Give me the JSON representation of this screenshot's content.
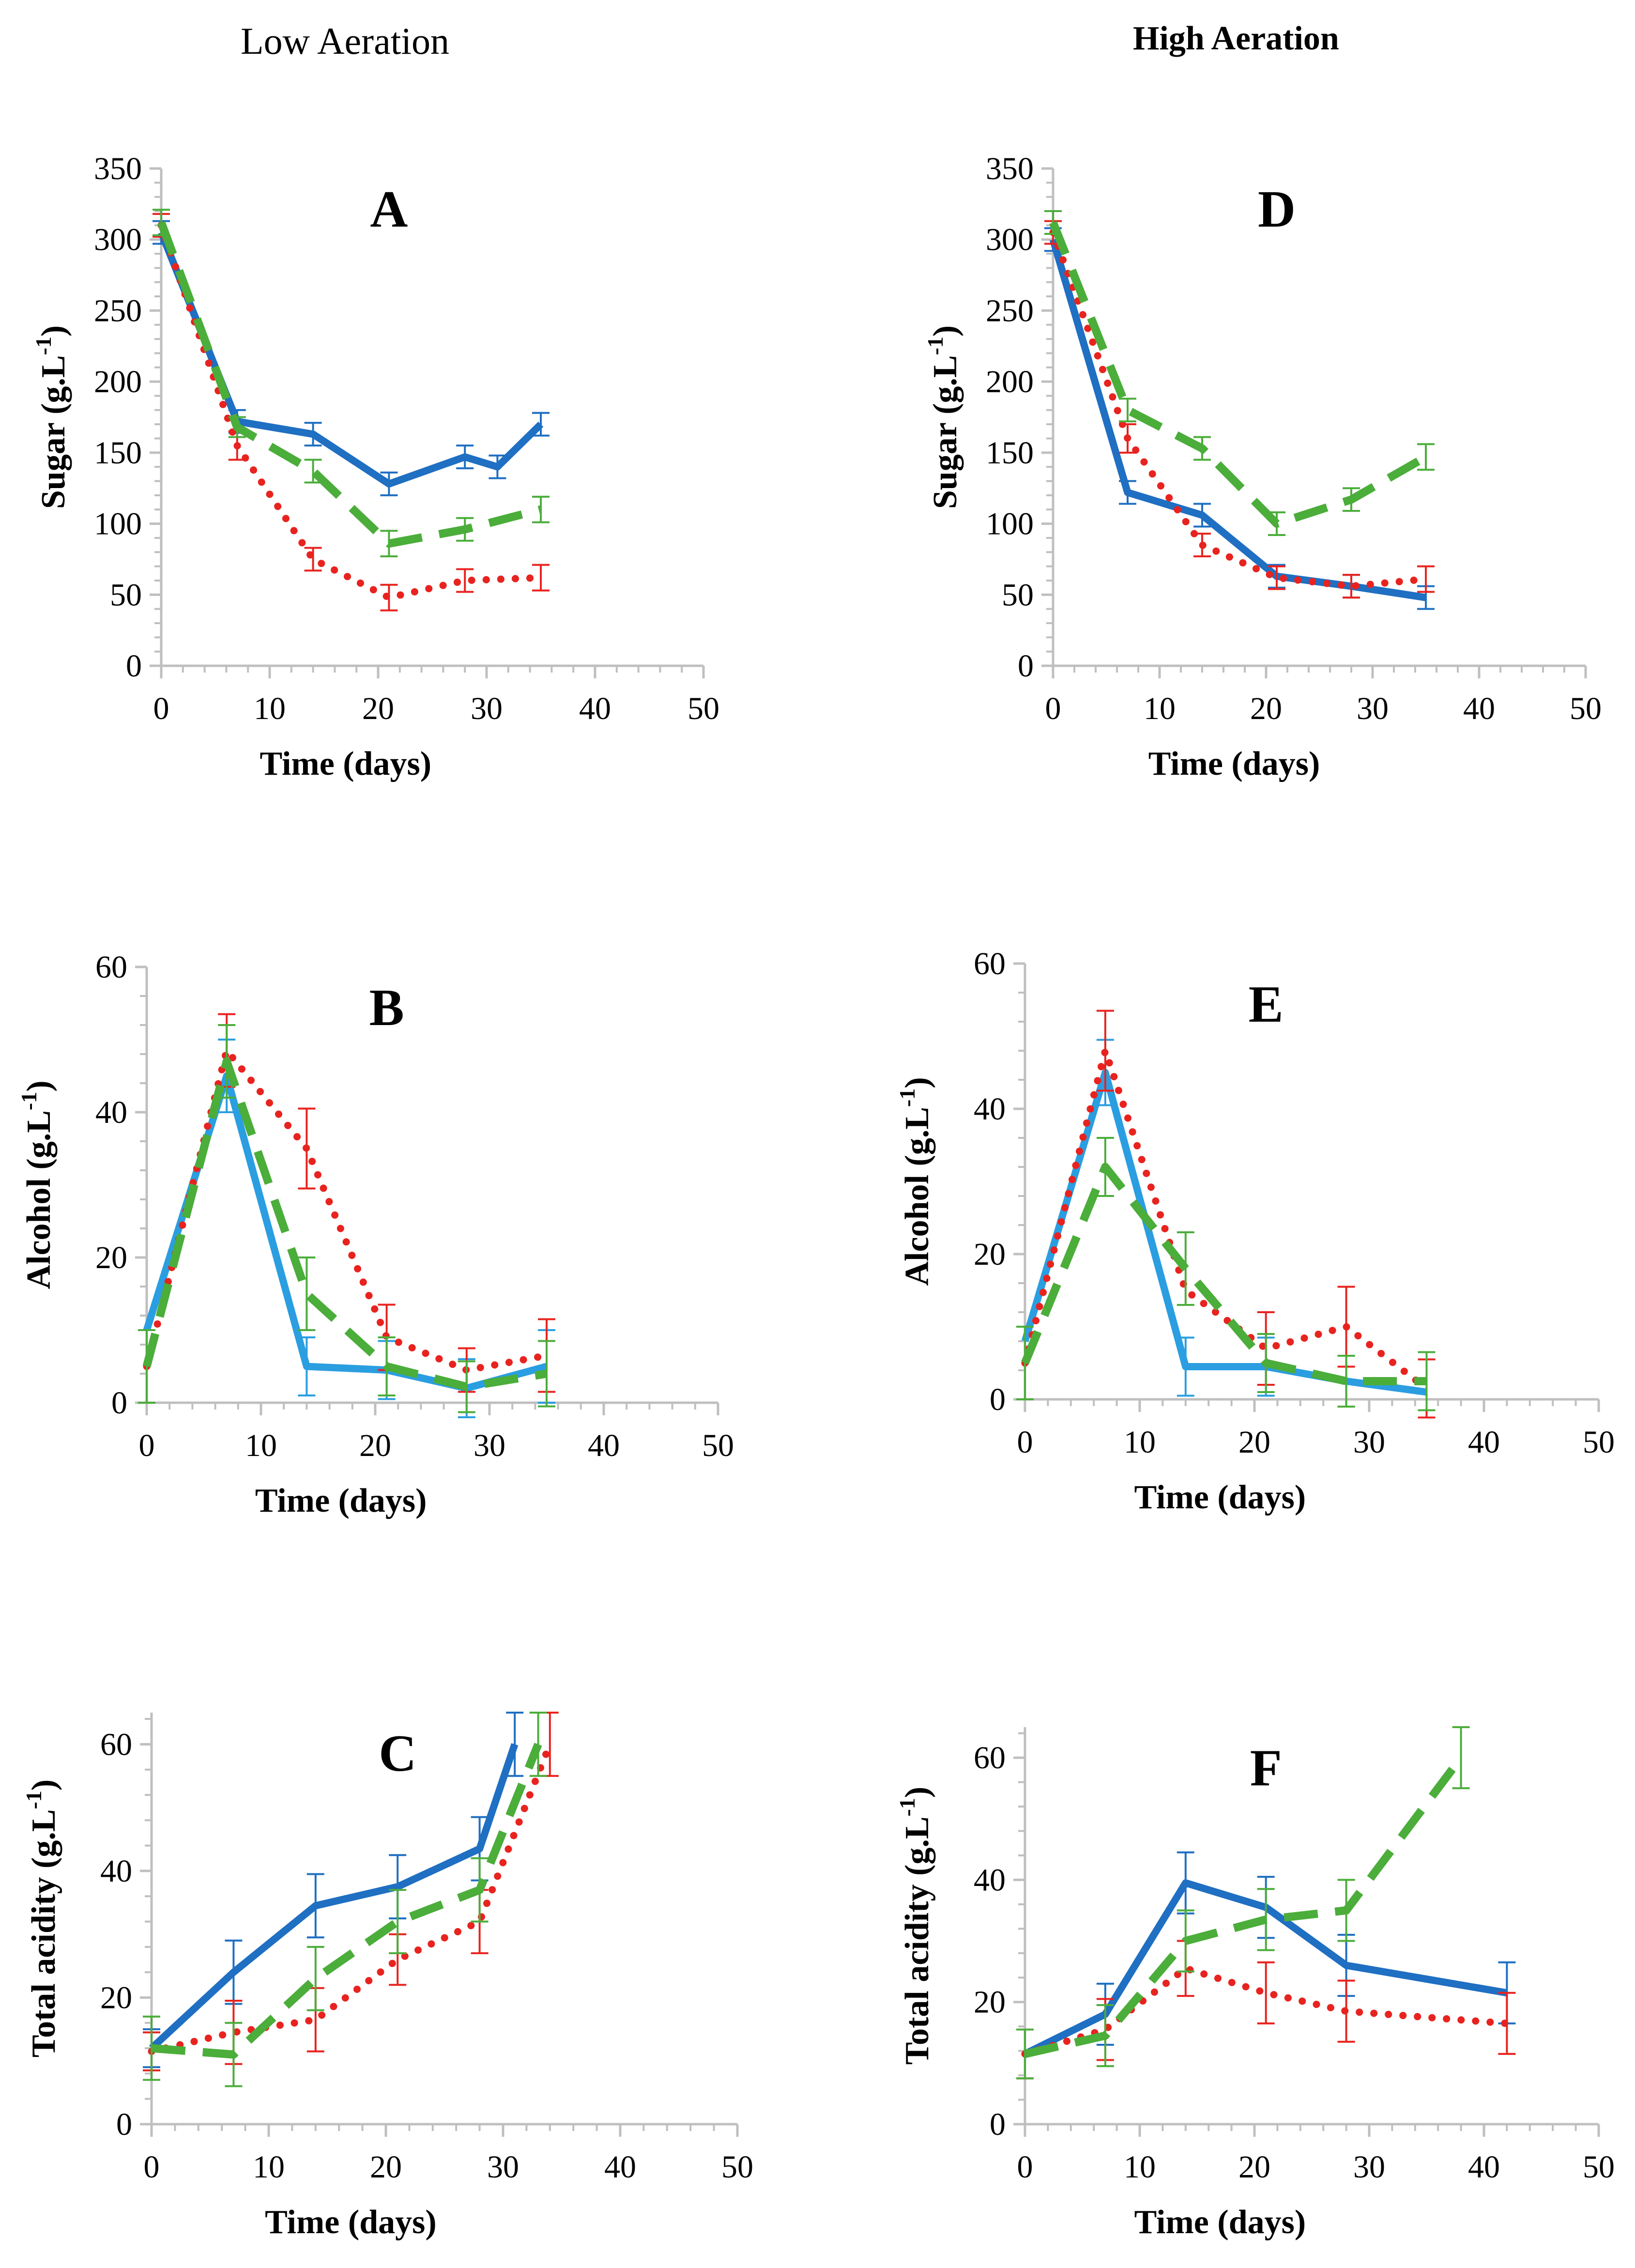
{
  "column_titles": {
    "left": "Low Aeration",
    "right": "High Aeration"
  },
  "series_colors": [
    "#1f6fc2",
    "#e8231f",
    "#4bad3a"
  ],
  "chart_data": [
    {
      "id": "A",
      "type": "line",
      "title": "A",
      "xlabel": "Time (days)",
      "ylabel_main": "Sugar  (g.L",
      "ylabel_sup": "-1",
      "ylabel_end": ")",
      "xlim": [
        0,
        50
      ],
      "ylim": [
        0,
        350
      ],
      "xticks": [
        0,
        10,
        20,
        30,
        40,
        50
      ],
      "yticks": [
        0,
        50,
        100,
        150,
        200,
        250,
        300,
        350
      ],
      "series": [
        {
          "name": "blue-solid",
          "color": "#1f6fc2",
          "style": "solid",
          "x": [
            0,
            7,
            14,
            21,
            28,
            31,
            35
          ],
          "y": [
            305,
            172,
            163,
            128,
            147,
            140,
            170
          ],
          "err": [
            8,
            8,
            8,
            8,
            8,
            8,
            8
          ]
        },
        {
          "name": "red-dotted",
          "color": "#e8231f",
          "style": "dotted",
          "x": [
            0,
            7,
            14,
            21,
            28,
            35
          ],
          "y": [
            310,
            155,
            75,
            48,
            60,
            62
          ],
          "err": [
            8,
            10,
            8,
            9,
            8,
            9
          ]
        },
        {
          "name": "green-dashed",
          "color": "#4bad3a",
          "style": "dashed",
          "x": [
            0,
            7,
            14,
            21,
            28,
            35
          ],
          "y": [
            312,
            168,
            137,
            86,
            96,
            110
          ],
          "err": [
            9,
            7,
            8,
            9,
            8,
            9
          ]
        }
      ]
    },
    {
      "id": "B",
      "type": "line",
      "title": "B",
      "xlabel": "Time (days)",
      "ylabel_main": "Alcohol (g.L",
      "ylabel_sup": "-1",
      "ylabel_end": ")",
      "xlim": [
        0,
        50
      ],
      "ylim": [
        0,
        60
      ],
      "xticks": [
        0,
        10,
        20,
        30,
        40,
        50
      ],
      "yticks": [
        0,
        20,
        40,
        60
      ],
      "series": [
        {
          "name": "lightblue-solid",
          "color": "#2a9ee0",
          "style": "solid",
          "x": [
            0,
            7,
            14,
            21,
            28,
            35
          ],
          "y": [
            10,
            45,
            5,
            4.5,
            2,
            5
          ],
          "err": [
            0,
            5,
            4,
            4,
            4,
            5
          ]
        },
        {
          "name": "red-dotted",
          "color": "#e8231f",
          "style": "dotted",
          "x": [
            0,
            7,
            14,
            21,
            28,
            35
          ],
          "y": [
            5,
            48.5,
            35,
            9,
            4.5,
            6.5
          ],
          "err": [
            0,
            5,
            5.5,
            4.5,
            3,
            5
          ]
        },
        {
          "name": "green-dashed",
          "color": "#4bad3a",
          "style": "dashed",
          "x": [
            0,
            7,
            14,
            21,
            28,
            35
          ],
          "y": [
            5,
            47,
            15,
            5,
            2.2,
            4
          ],
          "err": [
            5,
            5,
            5,
            4,
            3.5,
            4.5
          ]
        }
      ]
    },
    {
      "id": "C",
      "type": "line",
      "title": "C",
      "xlabel": "Time (days)",
      "ylabel_main": "Total acidity (g.L",
      "ylabel_sup": "-1",
      "ylabel_end": ")",
      "xlim": [
        0,
        50
      ],
      "ylim": [
        0,
        65
      ],
      "xticks": [
        0,
        10,
        20,
        30,
        40,
        50
      ],
      "yticks": [
        0,
        20,
        40,
        60
      ],
      "series": [
        {
          "name": "blue-solid",
          "color": "#1f6fc2",
          "style": "solid",
          "x": [
            0,
            7,
            14,
            21,
            28,
            31
          ],
          "y": [
            12,
            24,
            34.5,
            37.5,
            43.5,
            60
          ],
          "err": [
            3,
            5,
            5,
            5,
            5,
            5
          ]
        },
        {
          "name": "red-dotted",
          "color": "#e8231f",
          "style": "dotted",
          "x": [
            0,
            7,
            14,
            21,
            28,
            34
          ],
          "y": [
            11.5,
            14.5,
            16.5,
            26,
            32,
            60
          ],
          "err": [
            3,
            5,
            5,
            4,
            5,
            5
          ]
        },
        {
          "name": "green-dashed",
          "color": "#4bad3a",
          "style": "dashed",
          "x": [
            0,
            7,
            14,
            21,
            28,
            33
          ],
          "y": [
            12,
            11,
            23,
            32,
            37,
            60
          ],
          "err": [
            5,
            5,
            5,
            5,
            5,
            5
          ]
        }
      ]
    },
    {
      "id": "D",
      "type": "line",
      "title": "D",
      "xlabel": "Time (days)",
      "ylabel_main": "Sugar  (g.L",
      "ylabel_sup": "-1",
      "ylabel_end": ")",
      "xlim": [
        0,
        50
      ],
      "ylim": [
        0,
        350
      ],
      "xticks": [
        0,
        10,
        20,
        30,
        40,
        50
      ],
      "yticks": [
        0,
        50,
        100,
        150,
        200,
        250,
        300,
        350
      ],
      "series": [
        {
          "name": "blue-solid",
          "color": "#1f6fc2",
          "style": "solid",
          "x": [
            0,
            7,
            14,
            21,
            28,
            35
          ],
          "y": [
            300,
            122,
            106,
            63,
            56,
            48
          ],
          "err": [
            8,
            8,
            8,
            8,
            8,
            8
          ]
        },
        {
          "name": "red-dotted",
          "color": "#e8231f",
          "style": "dotted",
          "x": [
            0,
            7,
            14,
            21,
            28,
            35
          ],
          "y": [
            305,
            160,
            85,
            62,
            56,
            61
          ],
          "err": [
            8,
            10,
            8,
            8,
            8,
            9
          ]
        },
        {
          "name": "green-dashed",
          "color": "#4bad3a",
          "style": "dashed",
          "x": [
            0,
            7,
            14,
            21,
            28,
            35
          ],
          "y": [
            312,
            180,
            153,
            100,
            117,
            147
          ],
          "err": [
            8,
            8,
            8,
            8,
            8,
            9
          ]
        }
      ]
    },
    {
      "id": "E",
      "type": "line",
      "title": "E",
      "xlabel": "Time (days)",
      "ylabel_main": "Alcohol (g.L",
      "ylabel_sup": "-1",
      "ylabel_end": ")",
      "xlim": [
        0,
        50
      ],
      "ylim": [
        0,
        60
      ],
      "xticks": [
        0,
        10,
        20,
        30,
        40,
        50
      ],
      "yticks": [
        0,
        20,
        40,
        60
      ],
      "series": [
        {
          "name": "lightblue-solid",
          "color": "#2a9ee0",
          "style": "solid",
          "x": [
            0,
            7,
            14,
            21,
            28,
            35
          ],
          "y": [
            8,
            45,
            4.5,
            4.5,
            2.5,
            1
          ],
          "err": [
            0,
            4.5,
            4,
            4,
            3.5,
            0
          ]
        },
        {
          "name": "red-dotted",
          "color": "#e8231f",
          "style": "dotted",
          "x": [
            0,
            7,
            14,
            21,
            28,
            35
          ],
          "y": [
            5,
            48,
            15,
            7,
            10,
            1.5
          ],
          "err": [
            0,
            5.5,
            0,
            5,
            5.5,
            4
          ]
        },
        {
          "name": "green-dashed",
          "color": "#4bad3a",
          "style": "dashed",
          "x": [
            0,
            7,
            14,
            21,
            28,
            35
          ],
          "y": [
            5,
            32,
            18,
            5,
            2.5,
            2.5
          ],
          "err": [
            5,
            4,
            5,
            4,
            3.5,
            4
          ]
        }
      ]
    },
    {
      "id": "F",
      "type": "line",
      "title": "F",
      "xlabel": "Time (days)",
      "ylabel_main": "Total acidity (g.L",
      "ylabel_sup": "-1",
      "ylabel_end": ")",
      "xlim": [
        0,
        50
      ],
      "ylim": [
        0,
        65
      ],
      "xticks": [
        0,
        10,
        20,
        30,
        40,
        50
      ],
      "yticks": [
        0,
        20,
        40,
        60
      ],
      "series": [
        {
          "name": "blue-solid",
          "color": "#1f6fc2",
          "style": "solid",
          "x": [
            0,
            7,
            14,
            21,
            28,
            42
          ],
          "y": [
            11.5,
            18,
            39.5,
            35.5,
            26,
            21.5
          ],
          "err": [
            4,
            5,
            5,
            5,
            5,
            5
          ]
        },
        {
          "name": "red-dotted",
          "color": "#e8231f",
          "style": "dotted",
          "x": [
            0,
            7,
            14,
            21,
            28,
            42
          ],
          "y": [
            11.5,
            15.5,
            25.5,
            21.5,
            18.5,
            16.5
          ],
          "err": [
            4,
            5,
            4.5,
            5,
            5,
            5
          ]
        },
        {
          "name": "green-dashed",
          "color": "#4bad3a",
          "style": "dashed",
          "x": [
            0,
            7,
            14,
            21,
            28,
            38
          ],
          "y": [
            11.5,
            14.5,
            30,
            33.5,
            35,
            60
          ],
          "err": [
            4,
            5,
            5,
            5,
            5,
            5
          ]
        }
      ]
    }
  ]
}
